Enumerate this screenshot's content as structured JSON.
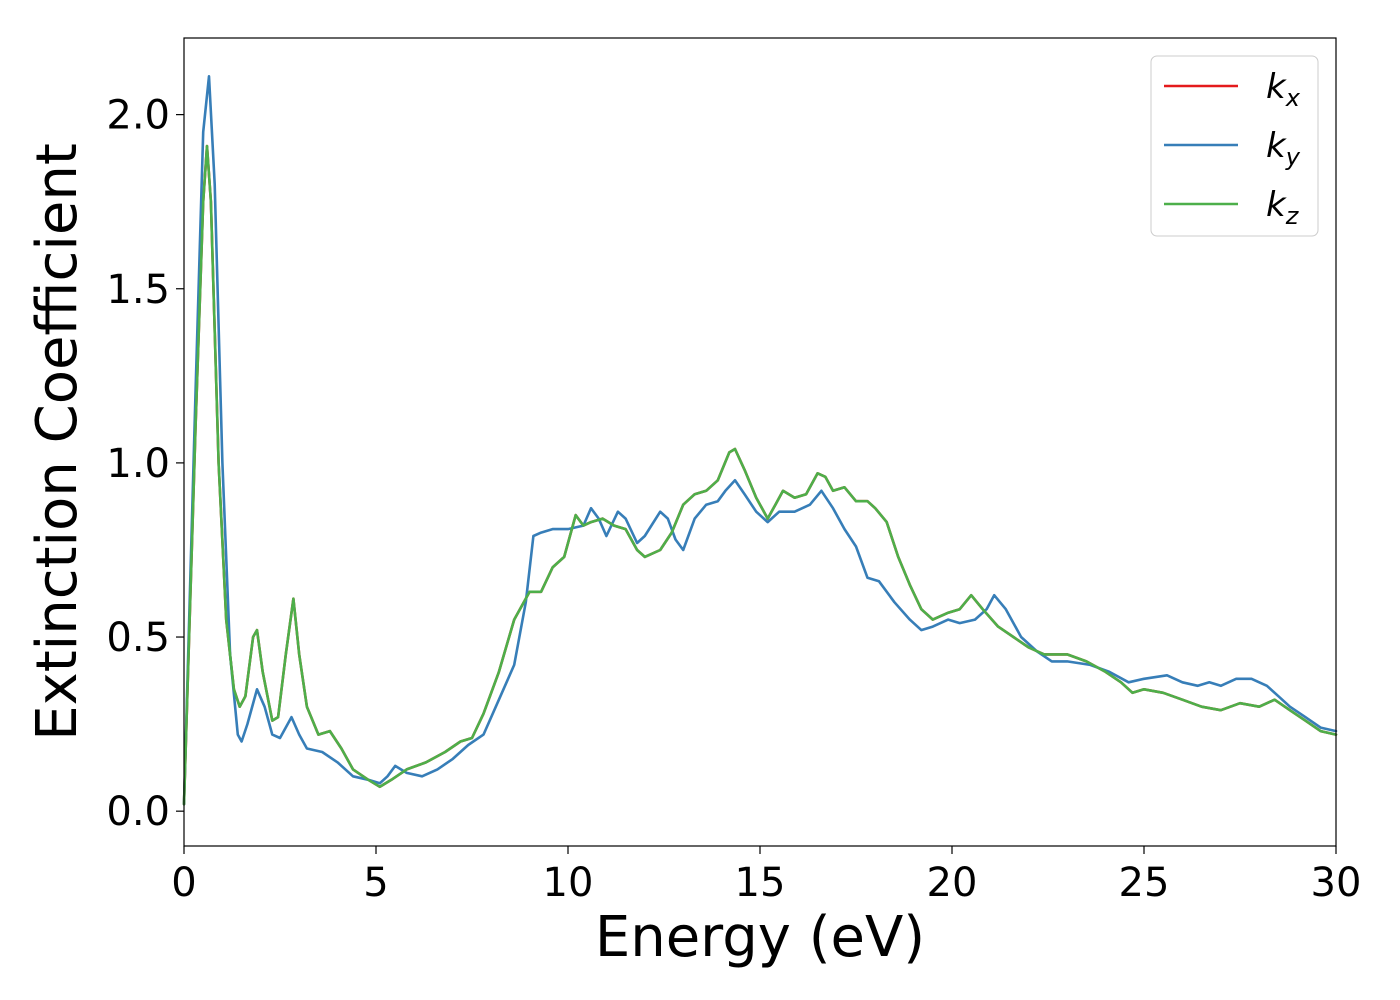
{
  "chart_data": {
    "type": "line",
    "title": "",
    "xlabel": "Energy (eV)",
    "ylabel": "Extinction Coefficient",
    "xlim": [
      0,
      30
    ],
    "ylim": [
      -0.1,
      2.22
    ],
    "xticks": [
      "0",
      "5",
      "10",
      "15",
      "20",
      "25",
      "30"
    ],
    "yticks": [
      "0.0",
      "0.5",
      "1.0",
      "1.5",
      "2.0"
    ],
    "xtick_values": [
      0,
      5,
      10,
      15,
      20,
      25,
      30
    ],
    "ytick_values": [
      0.0,
      0.5,
      1.0,
      1.5,
      2.0
    ],
    "grid": false,
    "legend_position": "top-right",
    "legend": [
      {
        "base": "k",
        "sub": "x",
        "color": "#e41a1c"
      },
      {
        "base": "k",
        "sub": "y",
        "color": "#377eb8"
      },
      {
        "base": "k",
        "sub": "z",
        "color": "#4daf4a"
      }
    ],
    "series": [
      {
        "color": "#e41a1c",
        "points": [
          [
            0,
            0.02
          ],
          [
            0.3,
            1.1
          ],
          [
            0.5,
            1.75
          ],
          [
            0.6,
            1.91
          ],
          [
            0.7,
            1.75
          ],
          [
            0.9,
            1.0
          ],
          [
            1.1,
            0.55
          ],
          [
            1.3,
            0.35
          ],
          [
            1.45,
            0.3
          ],
          [
            1.6,
            0.33
          ],
          [
            1.8,
            0.5
          ],
          [
            1.9,
            0.52
          ],
          [
            2.05,
            0.4
          ],
          [
            2.3,
            0.26
          ],
          [
            2.45,
            0.27
          ],
          [
            2.65,
            0.45
          ],
          [
            2.85,
            0.61
          ],
          [
            3.0,
            0.45
          ],
          [
            3.2,
            0.3
          ],
          [
            3.5,
            0.22
          ],
          [
            3.8,
            0.23
          ],
          [
            4.1,
            0.18
          ],
          [
            4.4,
            0.12
          ],
          [
            4.8,
            0.09
          ],
          [
            5.1,
            0.07
          ],
          [
            5.4,
            0.09
          ],
          [
            5.8,
            0.12
          ],
          [
            6.3,
            0.14
          ],
          [
            6.8,
            0.17
          ],
          [
            7.2,
            0.2
          ],
          [
            7.5,
            0.21
          ],
          [
            7.8,
            0.28
          ],
          [
            8.2,
            0.4
          ],
          [
            8.6,
            0.55
          ],
          [
            9.0,
            0.63
          ],
          [
            9.3,
            0.63
          ],
          [
            9.6,
            0.7
          ],
          [
            9.9,
            0.73
          ],
          [
            10.2,
            0.85
          ],
          [
            10.4,
            0.82
          ],
          [
            10.6,
            0.83
          ],
          [
            10.9,
            0.84
          ],
          [
            11.2,
            0.82
          ],
          [
            11.5,
            0.81
          ],
          [
            11.8,
            0.75
          ],
          [
            12.0,
            0.73
          ],
          [
            12.4,
            0.75
          ],
          [
            12.7,
            0.8
          ],
          [
            13.0,
            0.88
          ],
          [
            13.3,
            0.91
          ],
          [
            13.6,
            0.92
          ],
          [
            13.9,
            0.95
          ],
          [
            14.2,
            1.03
          ],
          [
            14.35,
            1.04
          ],
          [
            14.6,
            0.98
          ],
          [
            14.9,
            0.9
          ],
          [
            15.2,
            0.84
          ],
          [
            15.4,
            0.88
          ],
          [
            15.6,
            0.92
          ],
          [
            15.9,
            0.9
          ],
          [
            16.2,
            0.91
          ],
          [
            16.5,
            0.97
          ],
          [
            16.7,
            0.96
          ],
          [
            16.9,
            0.92
          ],
          [
            17.2,
            0.93
          ],
          [
            17.5,
            0.89
          ],
          [
            17.8,
            0.89
          ],
          [
            18.0,
            0.87
          ],
          [
            18.3,
            0.83
          ],
          [
            18.6,
            0.73
          ],
          [
            18.9,
            0.65
          ],
          [
            19.2,
            0.58
          ],
          [
            19.5,
            0.55
          ],
          [
            19.9,
            0.57
          ],
          [
            20.2,
            0.58
          ],
          [
            20.5,
            0.62
          ],
          [
            20.8,
            0.58
          ],
          [
            21.2,
            0.53
          ],
          [
            21.6,
            0.5
          ],
          [
            22.0,
            0.47
          ],
          [
            22.4,
            0.45
          ],
          [
            23.0,
            0.45
          ],
          [
            23.5,
            0.43
          ],
          [
            24.0,
            0.4
          ],
          [
            24.4,
            0.37
          ],
          [
            24.7,
            0.34
          ],
          [
            25.0,
            0.35
          ],
          [
            25.5,
            0.34
          ],
          [
            26.0,
            0.32
          ],
          [
            26.5,
            0.3
          ],
          [
            27.0,
            0.29
          ],
          [
            27.5,
            0.31
          ],
          [
            28.0,
            0.3
          ],
          [
            28.4,
            0.32
          ],
          [
            28.8,
            0.29
          ],
          [
            29.2,
            0.26
          ],
          [
            29.6,
            0.23
          ],
          [
            30.0,
            0.22
          ]
        ]
      },
      {
        "color": "#377eb8",
        "points": [
          [
            0,
            0.02
          ],
          [
            0.3,
            1.2
          ],
          [
            0.5,
            1.95
          ],
          [
            0.65,
            2.11
          ],
          [
            0.8,
            1.8
          ],
          [
            1.0,
            1.0
          ],
          [
            1.2,
            0.45
          ],
          [
            1.4,
            0.22
          ],
          [
            1.5,
            0.2
          ],
          [
            1.65,
            0.25
          ],
          [
            1.9,
            0.35
          ],
          [
            2.1,
            0.3
          ],
          [
            2.3,
            0.22
          ],
          [
            2.5,
            0.21
          ],
          [
            2.8,
            0.27
          ],
          [
            3.0,
            0.22
          ],
          [
            3.2,
            0.18
          ],
          [
            3.6,
            0.17
          ],
          [
            4.0,
            0.14
          ],
          [
            4.4,
            0.1
          ],
          [
            4.8,
            0.09
          ],
          [
            5.1,
            0.08
          ],
          [
            5.3,
            0.1
          ],
          [
            5.5,
            0.13
          ],
          [
            5.8,
            0.11
          ],
          [
            6.2,
            0.1
          ],
          [
            6.6,
            0.12
          ],
          [
            7.0,
            0.15
          ],
          [
            7.4,
            0.19
          ],
          [
            7.8,
            0.22
          ],
          [
            8.2,
            0.32
          ],
          [
            8.6,
            0.42
          ],
          [
            8.9,
            0.6
          ],
          [
            9.1,
            0.79
          ],
          [
            9.3,
            0.8
          ],
          [
            9.6,
            0.81
          ],
          [
            10.0,
            0.81
          ],
          [
            10.4,
            0.82
          ],
          [
            10.6,
            0.87
          ],
          [
            10.8,
            0.84
          ],
          [
            11.0,
            0.79
          ],
          [
            11.3,
            0.86
          ],
          [
            11.5,
            0.84
          ],
          [
            11.8,
            0.77
          ],
          [
            12.0,
            0.79
          ],
          [
            12.4,
            0.86
          ],
          [
            12.6,
            0.84
          ],
          [
            12.8,
            0.78
          ],
          [
            13.0,
            0.75
          ],
          [
            13.3,
            0.84
          ],
          [
            13.6,
            0.88
          ],
          [
            13.9,
            0.89
          ],
          [
            14.1,
            0.92
          ],
          [
            14.35,
            0.95
          ],
          [
            14.6,
            0.91
          ],
          [
            14.9,
            0.86
          ],
          [
            15.2,
            0.83
          ],
          [
            15.5,
            0.86
          ],
          [
            15.9,
            0.86
          ],
          [
            16.3,
            0.88
          ],
          [
            16.6,
            0.92
          ],
          [
            16.9,
            0.87
          ],
          [
            17.2,
            0.81
          ],
          [
            17.5,
            0.76
          ],
          [
            17.8,
            0.67
          ],
          [
            18.1,
            0.66
          ],
          [
            18.5,
            0.6
          ],
          [
            18.9,
            0.55
          ],
          [
            19.2,
            0.52
          ],
          [
            19.5,
            0.53
          ],
          [
            19.9,
            0.55
          ],
          [
            20.2,
            0.54
          ],
          [
            20.6,
            0.55
          ],
          [
            20.9,
            0.58
          ],
          [
            21.1,
            0.62
          ],
          [
            21.4,
            0.58
          ],
          [
            21.8,
            0.5
          ],
          [
            22.2,
            0.46
          ],
          [
            22.6,
            0.43
          ],
          [
            23.0,
            0.43
          ],
          [
            23.6,
            0.42
          ],
          [
            24.1,
            0.4
          ],
          [
            24.6,
            0.37
          ],
          [
            25.0,
            0.38
          ],
          [
            25.6,
            0.39
          ],
          [
            26.0,
            0.37
          ],
          [
            26.4,
            0.36
          ],
          [
            26.7,
            0.37
          ],
          [
            27.0,
            0.36
          ],
          [
            27.4,
            0.38
          ],
          [
            27.8,
            0.38
          ],
          [
            28.2,
            0.36
          ],
          [
            28.5,
            0.33
          ],
          [
            28.8,
            0.3
          ],
          [
            29.2,
            0.27
          ],
          [
            29.6,
            0.24
          ],
          [
            30.0,
            0.23
          ]
        ]
      },
      {
        "color": "#4daf4a",
        "points": [
          [
            0,
            0.02
          ],
          [
            0.3,
            1.1
          ],
          [
            0.5,
            1.75
          ],
          [
            0.6,
            1.91
          ],
          [
            0.7,
            1.75
          ],
          [
            0.9,
            1.0
          ],
          [
            1.1,
            0.55
          ],
          [
            1.3,
            0.35
          ],
          [
            1.45,
            0.3
          ],
          [
            1.6,
            0.33
          ],
          [
            1.8,
            0.5
          ],
          [
            1.9,
            0.52
          ],
          [
            2.05,
            0.4
          ],
          [
            2.3,
            0.26
          ],
          [
            2.45,
            0.27
          ],
          [
            2.65,
            0.45
          ],
          [
            2.85,
            0.61
          ],
          [
            3.0,
            0.45
          ],
          [
            3.2,
            0.3
          ],
          [
            3.5,
            0.22
          ],
          [
            3.8,
            0.23
          ],
          [
            4.1,
            0.18
          ],
          [
            4.4,
            0.12
          ],
          [
            4.8,
            0.09
          ],
          [
            5.1,
            0.07
          ],
          [
            5.4,
            0.09
          ],
          [
            5.8,
            0.12
          ],
          [
            6.3,
            0.14
          ],
          [
            6.8,
            0.17
          ],
          [
            7.2,
            0.2
          ],
          [
            7.5,
            0.21
          ],
          [
            7.8,
            0.28
          ],
          [
            8.2,
            0.4
          ],
          [
            8.6,
            0.55
          ],
          [
            9.0,
            0.63
          ],
          [
            9.3,
            0.63
          ],
          [
            9.6,
            0.7
          ],
          [
            9.9,
            0.73
          ],
          [
            10.2,
            0.85
          ],
          [
            10.4,
            0.82
          ],
          [
            10.6,
            0.83
          ],
          [
            10.9,
            0.84
          ],
          [
            11.2,
            0.82
          ],
          [
            11.5,
            0.81
          ],
          [
            11.8,
            0.75
          ],
          [
            12.0,
            0.73
          ],
          [
            12.4,
            0.75
          ],
          [
            12.7,
            0.8
          ],
          [
            13.0,
            0.88
          ],
          [
            13.3,
            0.91
          ],
          [
            13.6,
            0.92
          ],
          [
            13.9,
            0.95
          ],
          [
            14.2,
            1.03
          ],
          [
            14.35,
            1.04
          ],
          [
            14.6,
            0.98
          ],
          [
            14.9,
            0.9
          ],
          [
            15.2,
            0.84
          ],
          [
            15.4,
            0.88
          ],
          [
            15.6,
            0.92
          ],
          [
            15.9,
            0.9
          ],
          [
            16.2,
            0.91
          ],
          [
            16.5,
            0.97
          ],
          [
            16.7,
            0.96
          ],
          [
            16.9,
            0.92
          ],
          [
            17.2,
            0.93
          ],
          [
            17.5,
            0.89
          ],
          [
            17.8,
            0.89
          ],
          [
            18.0,
            0.87
          ],
          [
            18.3,
            0.83
          ],
          [
            18.6,
            0.73
          ],
          [
            18.9,
            0.65
          ],
          [
            19.2,
            0.58
          ],
          [
            19.5,
            0.55
          ],
          [
            19.9,
            0.57
          ],
          [
            20.2,
            0.58
          ],
          [
            20.5,
            0.62
          ],
          [
            20.8,
            0.58
          ],
          [
            21.2,
            0.53
          ],
          [
            21.6,
            0.5
          ],
          [
            22.0,
            0.47
          ],
          [
            22.4,
            0.45
          ],
          [
            23.0,
            0.45
          ],
          [
            23.5,
            0.43
          ],
          [
            24.0,
            0.4
          ],
          [
            24.4,
            0.37
          ],
          [
            24.7,
            0.34
          ],
          [
            25.0,
            0.35
          ],
          [
            25.5,
            0.34
          ],
          [
            26.0,
            0.32
          ],
          [
            26.5,
            0.3
          ],
          [
            27.0,
            0.29
          ],
          [
            27.5,
            0.31
          ],
          [
            28.0,
            0.3
          ],
          [
            28.4,
            0.32
          ],
          [
            28.8,
            0.29
          ],
          [
            29.2,
            0.26
          ],
          [
            29.6,
            0.23
          ],
          [
            30.0,
            0.22
          ]
        ]
      }
    ]
  }
}
